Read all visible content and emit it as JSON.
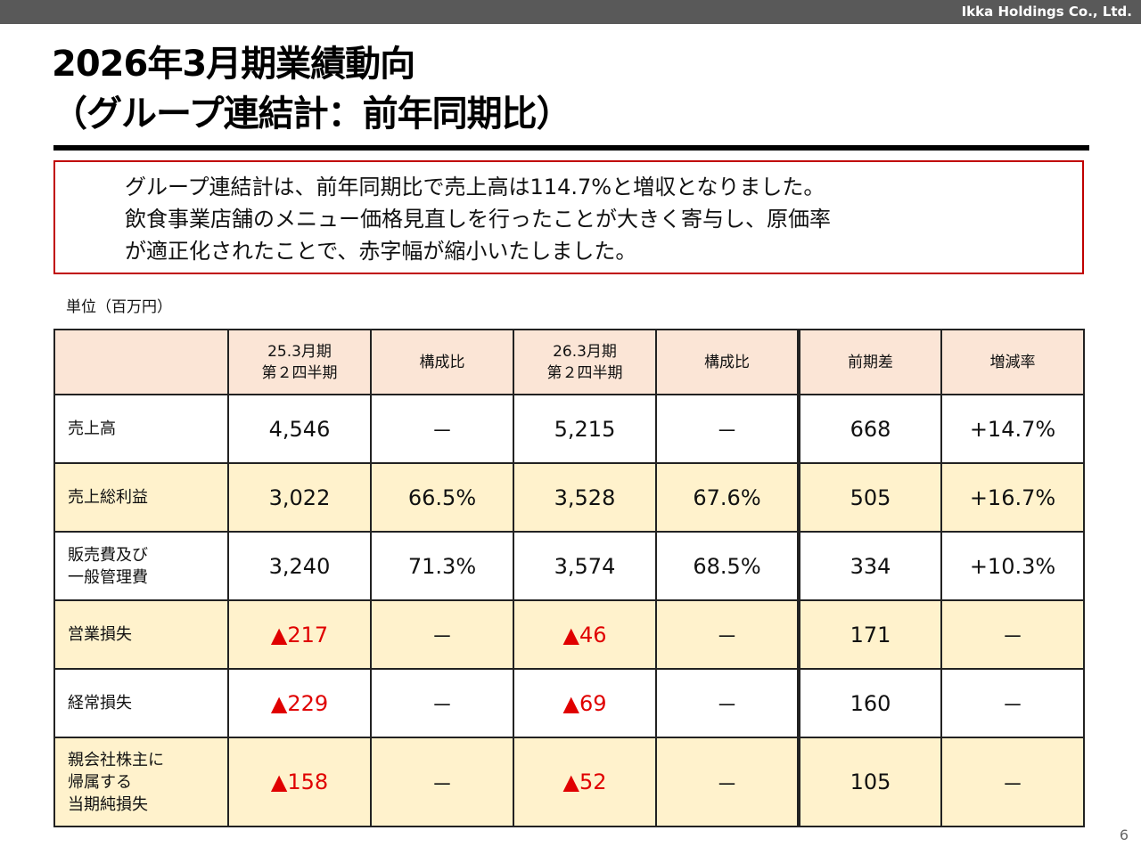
{
  "header": {
    "company": "Ikka Holdings Co., Ltd."
  },
  "title": {
    "line1": "2026年3月期業績動向",
    "line2": "（グループ連結計：前年同期比）"
  },
  "summary": {
    "lines": [
      "グループ連結計は、前年同期比で売上高は114.7%と増収となりました。",
      "飲食事業店舗のメニュー価格見直しを行ったことが大きく寄与し、原価率",
      "が適正化されたことで、赤字幅が縮小いたしました。"
    ]
  },
  "unit": "単位（百万円）",
  "table": {
    "headers": [
      "",
      "25.3月期\n第２四半期",
      "構成比",
      "26.3月期\n第２四半期",
      "構成比",
      "前期差",
      "増減率"
    ],
    "header_lines": [
      [
        "",
        ""
      ],
      [
        "25.3月期",
        "第２四半期"
      ],
      [
        "構成比",
        ""
      ],
      [
        "26.3月期",
        "第２四半期"
      ],
      [
        "構成比",
        ""
      ],
      [
        "前期差",
        ""
      ],
      [
        "増減率",
        ""
      ]
    ],
    "rows": [
      {
        "label": "売上高",
        "cells": [
          "4,546",
          "－",
          "5,215",
          "－",
          "668",
          "+14.7%"
        ]
      },
      {
        "label": "売上総利益",
        "cells": [
          "3,022",
          "66.5%",
          "3,528",
          "67.6%",
          "505",
          "+16.7%"
        ]
      },
      {
        "label": "販売費及び\n一般管理費",
        "cells": [
          "3,240",
          "71.3%",
          "3,574",
          "68.5%",
          "334",
          "+10.3%"
        ]
      },
      {
        "label": "営業損失",
        "cells": [
          "▲217",
          "－",
          "▲46",
          "－",
          "171",
          "－"
        ]
      },
      {
        "label": "経常損失",
        "cells": [
          "▲229",
          "－",
          "▲69",
          "－",
          "160",
          "－"
        ]
      },
      {
        "label": "親会社株主に\n帰属する\n当期純損失",
        "cells": [
          "▲158",
          "－",
          "▲52",
          "－",
          "105",
          "－"
        ]
      }
    ]
  },
  "colors": {
    "header_bg": "#fbe5d6",
    "highlight_bg": "#fff2cc",
    "negative": "#e00000",
    "frame": "#c00000"
  },
  "page_number": "6"
}
